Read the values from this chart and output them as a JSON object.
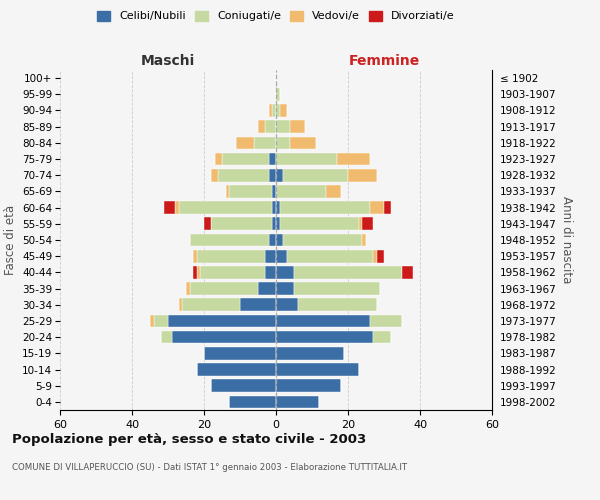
{
  "age_groups": [
    "0-4",
    "5-9",
    "10-14",
    "15-19",
    "20-24",
    "25-29",
    "30-34",
    "35-39",
    "40-44",
    "45-49",
    "50-54",
    "55-59",
    "60-64",
    "65-69",
    "70-74",
    "75-79",
    "80-84",
    "85-89",
    "90-94",
    "95-99",
    "100+"
  ],
  "birth_years": [
    "1998-2002",
    "1993-1997",
    "1988-1992",
    "1983-1987",
    "1978-1982",
    "1973-1977",
    "1968-1972",
    "1963-1967",
    "1958-1962",
    "1953-1957",
    "1948-1952",
    "1943-1947",
    "1938-1942",
    "1933-1937",
    "1928-1932",
    "1923-1927",
    "1918-1922",
    "1913-1917",
    "1908-1912",
    "1903-1907",
    "≤ 1902"
  ],
  "male_celibi": [
    13,
    18,
    22,
    20,
    29,
    30,
    10,
    5,
    3,
    3,
    2,
    1,
    1,
    1,
    2,
    2,
    0,
    0,
    0,
    0,
    0
  ],
  "male_coniugati": [
    0,
    0,
    0,
    0,
    3,
    4,
    16,
    19,
    18,
    19,
    22,
    17,
    26,
    12,
    14,
    13,
    6,
    3,
    1,
    0,
    0
  ],
  "male_vedovi": [
    0,
    0,
    0,
    0,
    0,
    1,
    1,
    1,
    1,
    1,
    0,
    0,
    1,
    1,
    2,
    2,
    5,
    2,
    1,
    0,
    0
  ],
  "male_divorziati": [
    0,
    0,
    0,
    0,
    0,
    0,
    0,
    0,
    1,
    0,
    0,
    2,
    3,
    0,
    0,
    0,
    0,
    0,
    0,
    0,
    0
  ],
  "female_celibi": [
    12,
    18,
    23,
    19,
    27,
    26,
    6,
    5,
    5,
    3,
    2,
    1,
    1,
    0,
    2,
    0,
    0,
    0,
    0,
    0,
    0
  ],
  "female_coniugati": [
    0,
    0,
    0,
    0,
    5,
    9,
    22,
    24,
    30,
    24,
    22,
    22,
    25,
    14,
    18,
    17,
    4,
    4,
    1,
    1,
    0
  ],
  "female_vedovi": [
    0,
    0,
    0,
    0,
    0,
    0,
    0,
    0,
    0,
    1,
    1,
    1,
    4,
    4,
    8,
    9,
    7,
    4,
    2,
    0,
    0
  ],
  "female_divorziati": [
    0,
    0,
    0,
    0,
    0,
    0,
    0,
    0,
    3,
    2,
    0,
    3,
    2,
    0,
    0,
    0,
    0,
    0,
    0,
    0,
    0
  ],
  "color_celibi": "#3a6ea5",
  "color_coniugati": "#c5d9a0",
  "color_vedovi": "#f0bb6e",
  "color_divorziati": "#cc1a1a",
  "background_color": "#f5f5f5",
  "grid_color": "#cccccc",
  "title": "Popolazione per età, sesso e stato civile - 2003",
  "subtitle": "COMUNE DI VILLAPERUCCIO (SU) - Dati ISTAT 1° gennaio 2003 - Elaborazione TUTTITALIA.IT",
  "xlabel_left": "Maschi",
  "xlabel_right": "Femmine",
  "ylabel_left": "Fasce di età",
  "ylabel_right": "Anni di nascita",
  "xlim": 60,
  "legend_labels": [
    "Celibi/Nubili",
    "Coniugati/e",
    "Vedovi/e",
    "Divorziati/e"
  ]
}
